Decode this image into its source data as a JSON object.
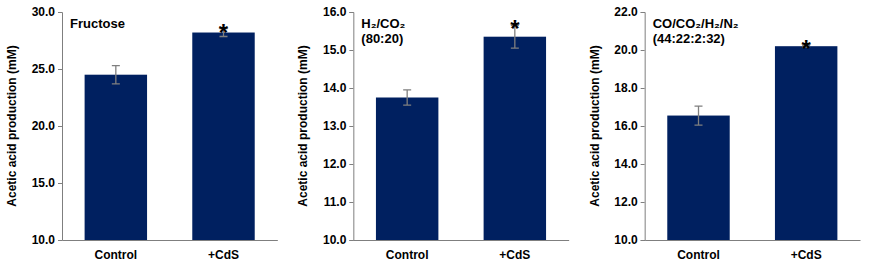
{
  "chart_data": [
    {
      "type": "bar",
      "title": [
        "Fructose"
      ],
      "y_label": "Acetic acid production (mM)",
      "categories": [
        "Control",
        "+CdS"
      ],
      "values": [
        24.5,
        28.2
      ],
      "errors": [
        0.8,
        0.35
      ],
      "color": "#002060",
      "ylim": [
        10,
        30
      ],
      "yticks": [
        {
          "value": 10,
          "label": "10.0"
        },
        {
          "value": 15,
          "label": "15.0"
        },
        {
          "value": 20,
          "label": "20.0"
        },
        {
          "value": 25,
          "label": "25.0"
        },
        {
          "value": 30,
          "label": "30.0"
        }
      ],
      "grid": false,
      "annotations": [
        {
          "category": "+CdS",
          "text": "*"
        }
      ]
    },
    {
      "type": "bar",
      "title": [
        "H₂/CO₂",
        "(80:20)"
      ],
      "y_label": "Acetic acid production (mM)",
      "categories": [
        "Control",
        "+CdS"
      ],
      "values": [
        13.75,
        15.35
      ],
      "errors": [
        0.2,
        0.3
      ],
      "color": "#002060",
      "ylim": [
        10,
        16
      ],
      "yticks": [
        {
          "value": 10,
          "label": "10.0"
        },
        {
          "value": 11,
          "label": "11.0"
        },
        {
          "value": 12,
          "label": "12.0"
        },
        {
          "value": 13,
          "label": "13.0"
        },
        {
          "value": 14,
          "label": "14.0"
        },
        {
          "value": 15,
          "label": "15.0"
        },
        {
          "value": 16,
          "label": "16.0"
        }
      ],
      "grid": false,
      "annotations": [
        {
          "category": "+CdS",
          "text": "*"
        }
      ]
    },
    {
      "type": "bar",
      "title": [
        "CO/CO₂/H₂/N₂",
        "(44:22:2:32)"
      ],
      "y_label": "Acetic acid production (mM)",
      "categories": [
        "Control",
        "+CdS"
      ],
      "values": [
        16.55,
        20.2
      ],
      "errors": [
        0.5,
        0.05
      ],
      "color": "#002060",
      "ylim": [
        10,
        22
      ],
      "yticks": [
        {
          "value": 10,
          "label": "10.0"
        },
        {
          "value": 12,
          "label": "12.0"
        },
        {
          "value": 14,
          "label": "14.0"
        },
        {
          "value": 16,
          "label": "16.0"
        },
        {
          "value": 18,
          "label": "18.0"
        },
        {
          "value": 20,
          "label": "20.0"
        },
        {
          "value": 22,
          "label": "22.0"
        }
      ],
      "grid": false,
      "annotations": [
        {
          "category": "+CdS",
          "text": "*"
        }
      ]
    }
  ]
}
